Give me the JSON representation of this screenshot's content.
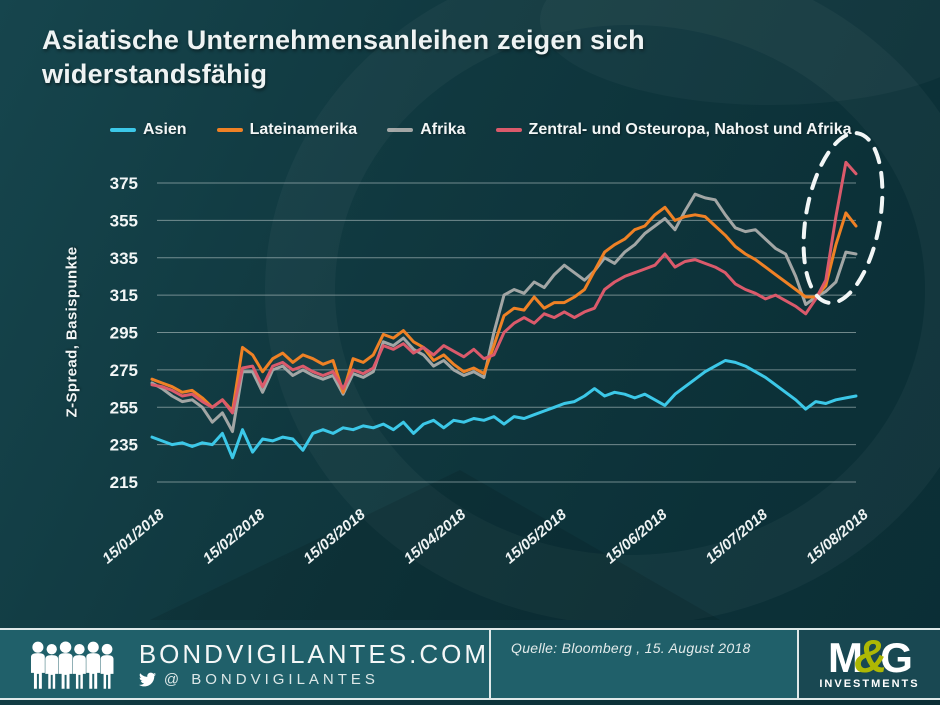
{
  "title": "Asiatische Unternehmensanleihen zeigen sich widerstandsfähig",
  "ylabel": "Z-Spread, Basispunkte",
  "chart_data": {
    "type": "line",
    "xlabel": "",
    "ylabel": "Z-Spread, Basispunkte",
    "ylim": [
      215,
      392
    ],
    "yticks": [
      215,
      235,
      255,
      275,
      295,
      315,
      335,
      355,
      375
    ],
    "x_tick_labels": [
      "15/01/2018",
      "15/02/2018",
      "15/03/2018",
      "15/04/2018",
      "15/05/2018",
      "15/06/2018",
      "15/07/2018",
      "15/08/2018"
    ],
    "grid": "horizontal",
    "legend_position": "top",
    "series": [
      {
        "name": "Asien",
        "color": "#3cc8e8",
        "z": 4,
        "values": [
          239,
          237,
          235,
          236,
          234,
          236,
          235,
          241,
          228,
          243,
          231,
          238,
          237,
          239,
          238,
          232,
          241,
          243,
          241,
          244,
          243,
          245,
          244,
          246,
          243,
          247,
          241,
          246,
          248,
          244,
          248,
          247,
          249,
          248,
          250,
          246,
          250,
          249,
          251,
          253,
          255,
          257,
          258,
          261,
          265,
          261,
          263,
          262,
          260,
          262,
          259,
          256,
          262,
          266,
          270,
          274,
          277,
          280,
          279,
          277,
          274,
          271,
          267,
          263,
          259,
          254,
          258,
          257,
          259,
          260,
          261
        ]
      },
      {
        "name": "Lateinamerika",
        "color": "#ef8125",
        "z": 2,
        "values": [
          270,
          268,
          266,
          263,
          264,
          260,
          255,
          259,
          253,
          287,
          283,
          274,
          281,
          284,
          279,
          283,
          281,
          278,
          280,
          263,
          281,
          279,
          283,
          294,
          292,
          296,
          290,
          287,
          280,
          283,
          278,
          274,
          276,
          273,
          288,
          304,
          308,
          307,
          314,
          308,
          311,
          311,
          314,
          318,
          328,
          338,
          342,
          345,
          350,
          352,
          358,
          362,
          355,
          357,
          358,
          357,
          352,
          347,
          341,
          337,
          334,
          330,
          326,
          322,
          318,
          314,
          314,
          320,
          342,
          359,
          352
        ]
      },
      {
        "name": "Afrika",
        "color": "#a2a6a5",
        "z": 1,
        "values": [
          268,
          265,
          261,
          258,
          259,
          255,
          247,
          252,
          242,
          274,
          274,
          263,
          275,
          277,
          272,
          275,
          272,
          270,
          272,
          262,
          273,
          271,
          274,
          290,
          288,
          292,
          286,
          283,
          277,
          280,
          275,
          272,
          274,
          271,
          295,
          315,
          318,
          316,
          322,
          319,
          326,
          331,
          327,
          323,
          328,
          335,
          332,
          338,
          342,
          348,
          352,
          356,
          350,
          360,
          369,
          367,
          366,
          358,
          351,
          349,
          350,
          345,
          340,
          337,
          325,
          310,
          314,
          317,
          322,
          338,
          337
        ]
      },
      {
        "name": "Zentral- und Osteuropa, Nahost und Afrika",
        "color": "#db5a6b",
        "z": 3,
        "values": [
          267,
          266,
          264,
          261,
          262,
          258,
          255,
          259,
          252,
          276,
          277,
          266,
          277,
          279,
          275,
          277,
          274,
          272,
          274,
          265,
          275,
          273,
          276,
          288,
          286,
          289,
          284,
          287,
          283,
          288,
          285,
          282,
          286,
          281,
          283,
          295,
          300,
          303,
          300,
          305,
          303,
          306,
          303,
          306,
          308,
          318,
          322,
          325,
          327,
          329,
          331,
          337,
          330,
          333,
          334,
          332,
          330,
          327,
          321,
          318,
          316,
          313,
          315,
          312,
          309,
          305,
          313,
          323,
          357,
          386,
          380
        ]
      }
    ],
    "annotation": {
      "shape": "dashed-ellipse",
      "note": "highlights end-of-period spike near 15/08/2018"
    }
  },
  "footer": {
    "site": "BONDVIGILANTES.COM",
    "twitter": "@ BONDVIGILANTES",
    "source_label": "Quelle: Bloomberg , 15. August 2018",
    "logo": {
      "m": "M",
      "amp": "&",
      "g": "G",
      "investments": "INVESTMENTS"
    }
  }
}
